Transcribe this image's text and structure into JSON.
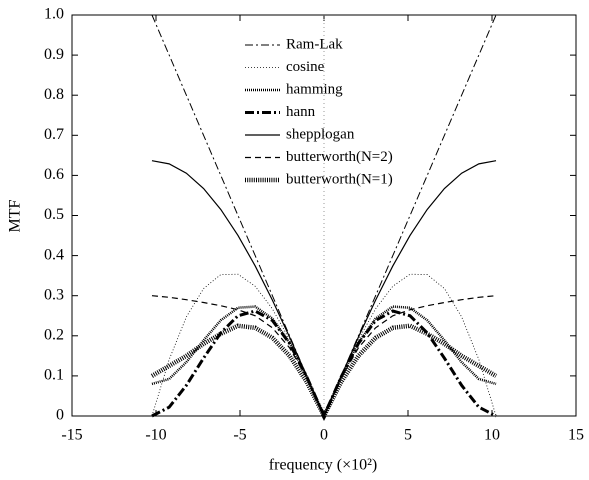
{
  "chart_data": {
    "type": "line",
    "xlabel": "frequency (×10²)",
    "ylabel": "MTF",
    "x": [
      -10.24,
      -9.216,
      -8.192,
      -7.168,
      -6.144,
      -5.12,
      -4.096,
      -3.072,
      -2.048,
      -1.024,
      0,
      1.024,
      2.048,
      3.072,
      4.096,
      5.12,
      6.144,
      7.168,
      8.192,
      9.216,
      10.24
    ],
    "series": [
      {
        "name": "Ram-Lak",
        "color": "#000000",
        "values": [
          1,
          0.9,
          0.8,
          0.7,
          0.6,
          0.5,
          0.4,
          0.3,
          0.2,
          0.1,
          0,
          0.1,
          0.2,
          0.3,
          0.4,
          0.5,
          0.6,
          0.7,
          0.8,
          0.9,
          1
        ]
      },
      {
        "name": "cosine",
        "color": "#000000",
        "values": [
          0,
          0.1408,
          0.2472,
          0.3178,
          0.3527,
          0.3536,
          0.3236,
          0.2673,
          0.1902,
          0.0988,
          0,
          0.0988,
          0.1902,
          0.2673,
          0.3236,
          0.3536,
          0.3527,
          0.3178,
          0.2472,
          0.1408,
          0
        ]
      },
      {
        "name": "hamming",
        "color": "#000000",
        "values": [
          0.08,
          0.0923,
          0.1343,
          0.1887,
          0.2387,
          0.27,
          0.2729,
          0.2431,
          0.1824,
          0.0978,
          0,
          0.0978,
          0.1824,
          0.2431,
          0.2729,
          0.27,
          0.2387,
          0.1887,
          0.1343,
          0.0923,
          0.08
        ]
      },
      {
        "name": "hann",
        "color": "#000000",
        "values": [
          0,
          0.022,
          0.0764,
          0.1443,
          0.2073,
          0.25,
          0.2618,
          0.2382,
          0.1809,
          0.0976,
          0,
          0.0976,
          0.1809,
          0.2382,
          0.2618,
          0.25,
          0.2073,
          0.1443,
          0.0764,
          0.022,
          0
        ]
      },
      {
        "name": "shepplogan",
        "color": "#000000",
        "values": [
          0.6366,
          0.6288,
          0.6055,
          0.5672,
          0.515,
          0.4502,
          0.3742,
          0.289,
          0.1967,
          0.0996,
          0,
          0.0996,
          0.1967,
          0.289,
          0.3742,
          0.4502,
          0.515,
          0.5672,
          0.6055,
          0.6288,
          0.6366
        ]
      },
      {
        "name": "butterworth(N=2)",
        "color": "#000000",
        "values": [
          0.3,
          0.296,
          0.29,
          0.283,
          0.275,
          0.265,
          0.25,
          0.22,
          0.17,
          0.095,
          0,
          0.095,
          0.17,
          0.22,
          0.25,
          0.265,
          0.275,
          0.283,
          0.29,
          0.296,
          0.3
        ]
      },
      {
        "name": "butterworth(N=1)",
        "color": "#000000",
        "values": [
          0.1,
          0.125,
          0.15,
          0.18,
          0.205,
          0.225,
          0.22,
          0.195,
          0.15,
          0.085,
          0,
          0.085,
          0.15,
          0.195,
          0.22,
          0.225,
          0.205,
          0.18,
          0.15,
          0.125,
          0.1
        ]
      }
    ],
    "xlim": [
      -15,
      15
    ],
    "xticks": [
      -15,
      -10,
      -5,
      0,
      5,
      10,
      15
    ],
    "ylim": [
      0,
      1
    ],
    "yticks": [
      0,
      0.1,
      0.2,
      0.3,
      0.4,
      0.5,
      0.6,
      0.7,
      0.8,
      0.9,
      {
        "value": 1,
        "label": "1.0"
      }
    ],
    "grid": true
  }
}
